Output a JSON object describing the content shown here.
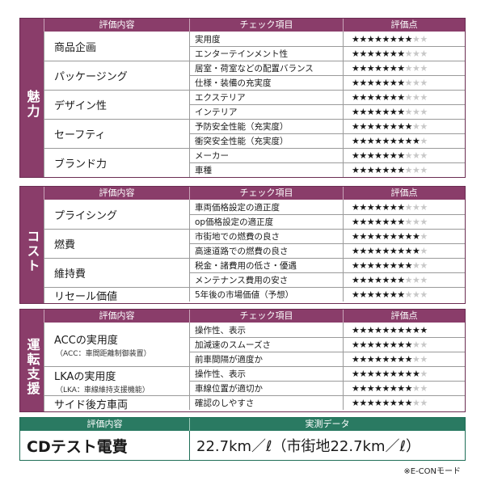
{
  "headers": {
    "category": "評価内容",
    "check": "チェック項目",
    "score": "評価点"
  },
  "star_max": 10,
  "colors": {
    "section": "#8a3d6a",
    "cd": "#2a7a62"
  },
  "sections": [
    {
      "side_label": "魅力",
      "groups": [
        {
          "name": "商品企画",
          "items": [
            {
              "label": "実用度",
              "stars": 8
            },
            {
              "label": "エンターテインメント性",
              "stars": 7
            }
          ]
        },
        {
          "name": "パッケージング",
          "items": [
            {
              "label": "居室・荷室などの配置バランス",
              "stars": 7
            },
            {
              "label": "仕様・装備の充実度",
              "stars": 7
            }
          ]
        },
        {
          "name": "デザイン性",
          "items": [
            {
              "label": "エクステリア",
              "stars": 7
            },
            {
              "label": "インテリア",
              "stars": 7
            }
          ]
        },
        {
          "name": "セーフティ",
          "items": [
            {
              "label": "予防安全性能（充実度）",
              "stars": 8
            },
            {
              "label": "衝突安全性能（充実度）",
              "stars": 9
            }
          ]
        },
        {
          "name": "ブランド力",
          "items": [
            {
              "label": "メーカー",
              "stars": 7
            },
            {
              "label": "車種",
              "stars": 7
            }
          ]
        }
      ]
    },
    {
      "side_label": "コスト",
      "groups": [
        {
          "name": "プライシング",
          "items": [
            {
              "label": "車両価格設定の適正度",
              "stars": 7
            },
            {
              "label": "op価格設定の適正度",
              "stars": 7
            }
          ]
        },
        {
          "name": "燃費",
          "items": [
            {
              "label": "市街地での燃費の良さ",
              "stars": 9
            },
            {
              "label": "高速道路での燃費の良さ",
              "stars": 9
            }
          ]
        },
        {
          "name": "維持費",
          "items": [
            {
              "label": "税金・諸費用の低さ・優遇",
              "stars": 8
            },
            {
              "label": "メンテナンス費用の安さ",
              "stars": 7
            }
          ]
        },
        {
          "name": "リセール価値",
          "items": [
            {
              "label": "5年後の市場価値（予想）",
              "stars": 7
            }
          ]
        }
      ]
    },
    {
      "side_label": "運転支援",
      "groups": [
        {
          "name": "ACCの実用度",
          "sub": "（ACC：車間距離制御装置）",
          "items": [
            {
              "label": "操作性、表示",
              "stars": 10
            },
            {
              "label": "加減速のスムーズさ",
              "stars": 8
            },
            {
              "label": "前車間隔が適度か",
              "stars": 8
            }
          ]
        },
        {
          "name": "LKAの実用度",
          "sub": "（LKA：車線維持支援機能）",
          "items": [
            {
              "label": "操作性、表示",
              "stars": 9
            },
            {
              "label": "車線位置が適切か",
              "stars": 8
            }
          ]
        },
        {
          "name": "サイド後方車両",
          "items": [
            {
              "label": "確認のしやすさ",
              "stars": 8
            }
          ]
        }
      ]
    }
  ],
  "cd_test": {
    "header_label": "評価内容",
    "header_value": "実測データ",
    "label": "CDテスト電費",
    "value": "22.7km／ℓ（市街地22.7km／ℓ）"
  },
  "note": "※E-CONモード"
}
